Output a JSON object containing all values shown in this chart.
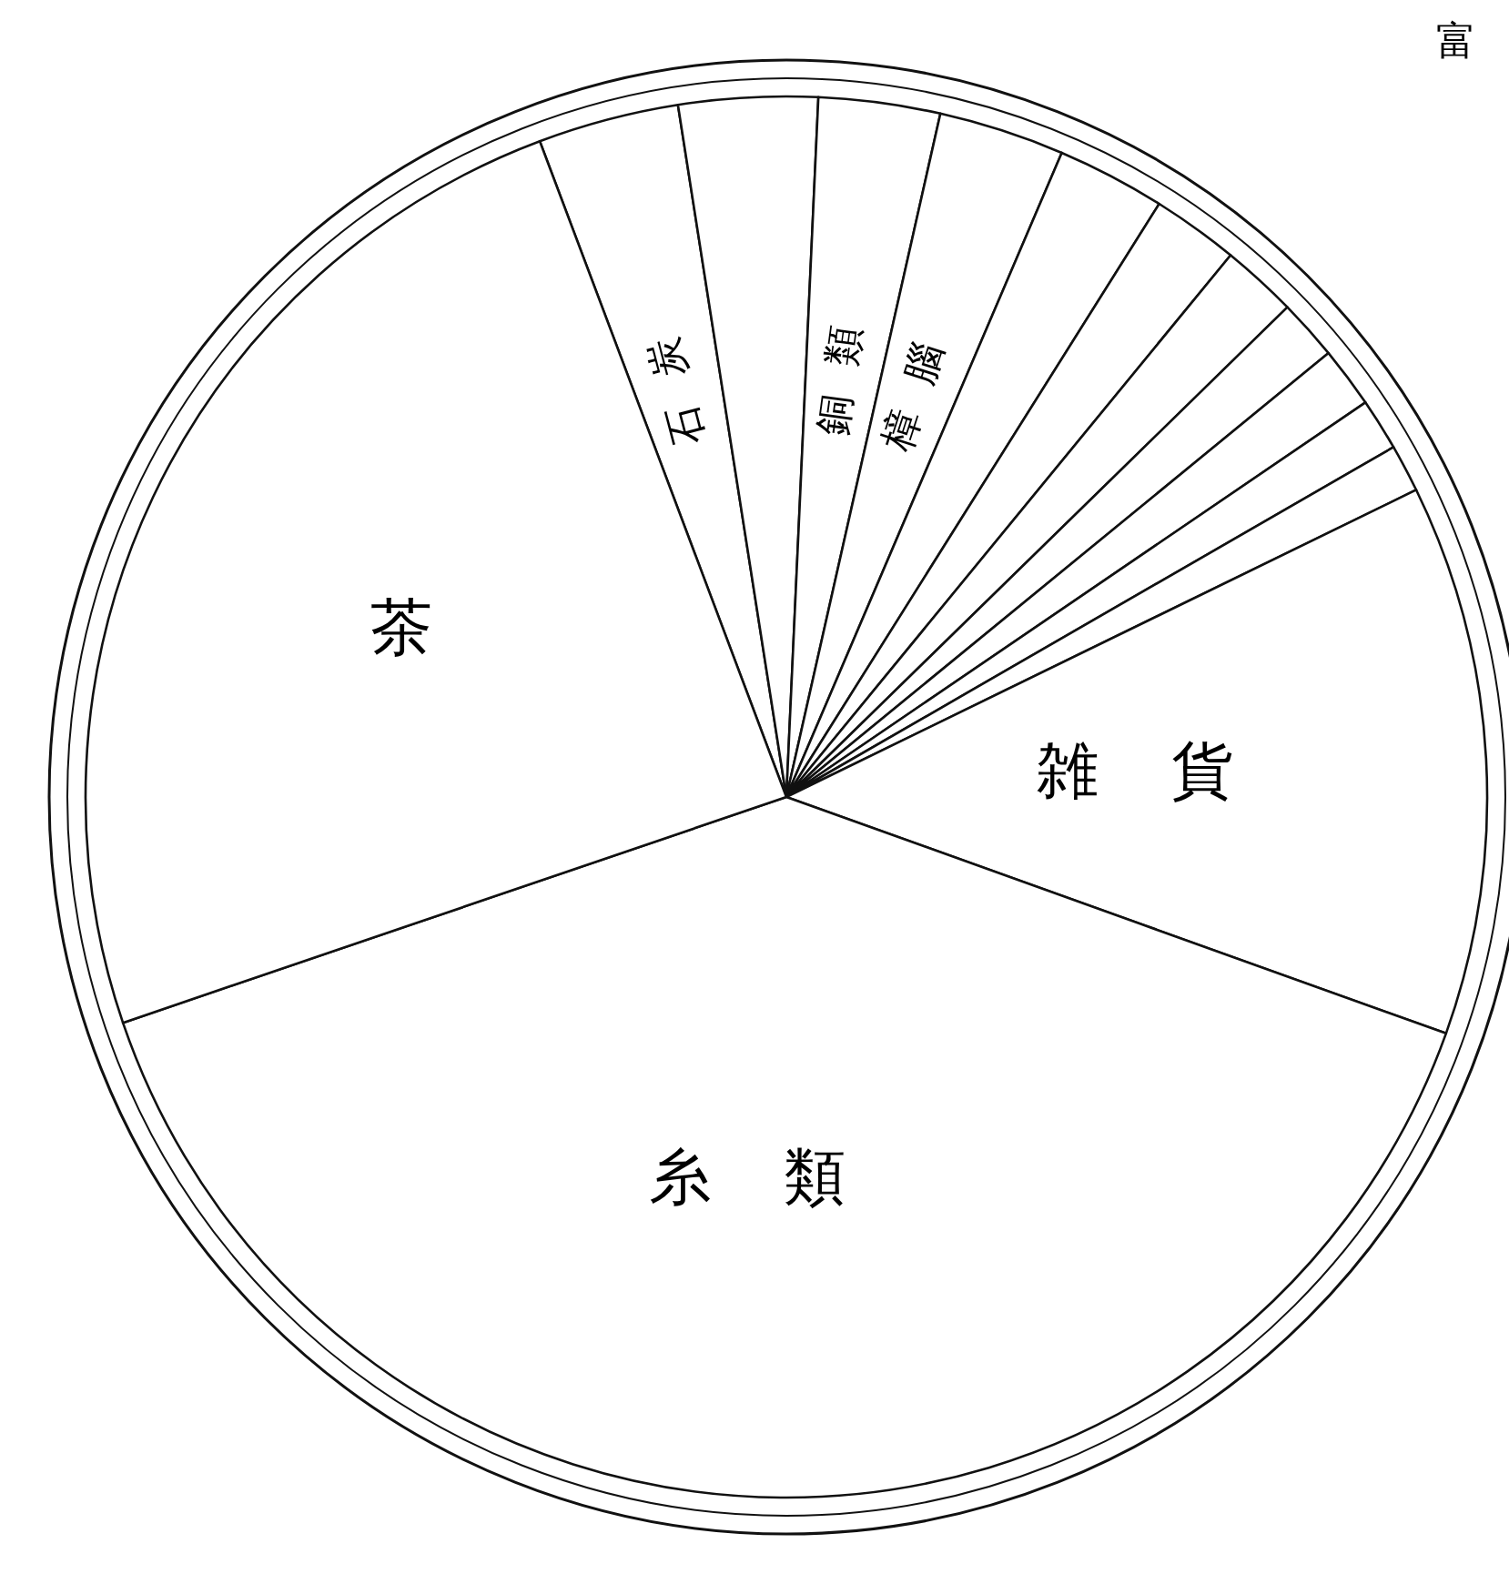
{
  "chart_data": {
    "type": "pie",
    "categories": [
      "石炭",
      null,
      "銅類",
      "樟腦",
      null,
      null,
      null,
      null,
      null,
      null,
      null,
      "雑貨",
      "糸類",
      "茶"
    ],
    "values": [
      3.25,
      3.2,
      2.8,
      2.9,
      2.5,
      2.0,
      1.75,
      1.4,
      1.4,
      1.2,
      1.1,
      12.7,
      39.3,
      24.5
    ],
    "colors": [
      "#ffffff",
      "#ffffff",
      "#ffffff",
      "#ffffff",
      "#ffffff",
      "#ffffff",
      "#ffffff",
      "#ffffff",
      "#ffffff",
      "#ffffff",
      "#ffffff",
      "#ffffff",
      "#ffffff",
      "#ffffff"
    ],
    "annotations": [
      "富"
    ]
  }
}
